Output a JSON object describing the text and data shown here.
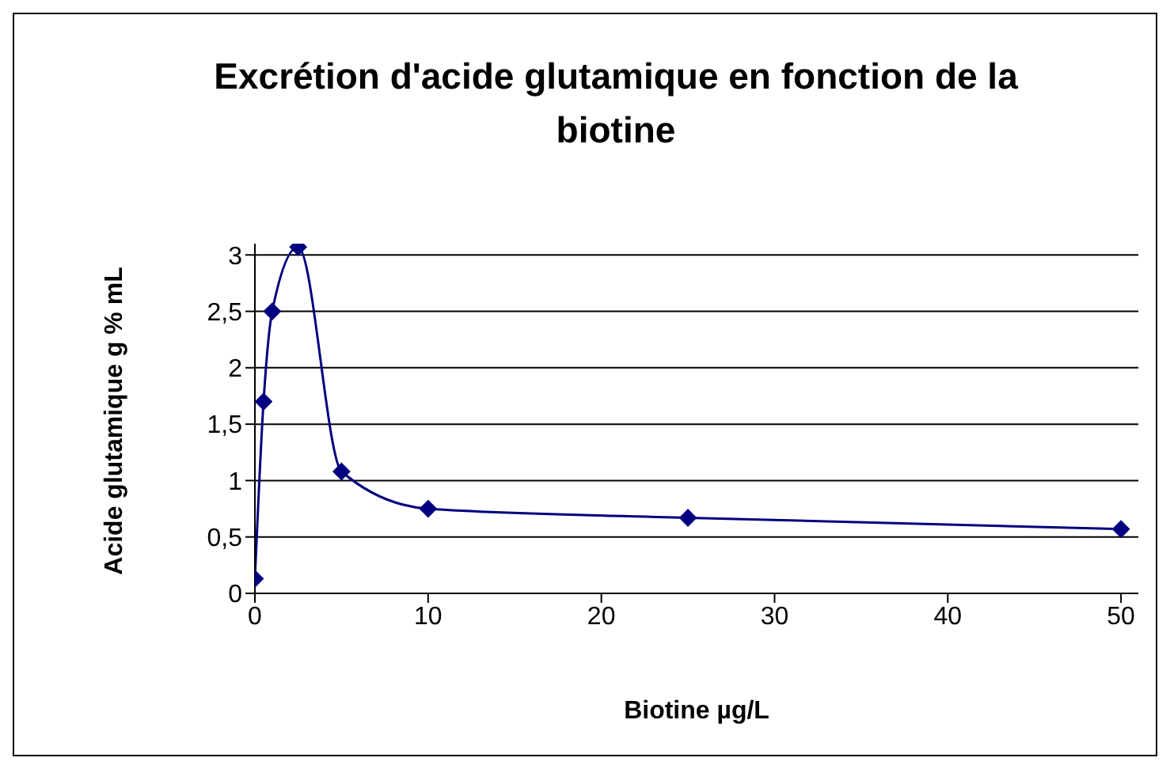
{
  "chart_data": {
    "type": "line",
    "title": "Excrétion d'acide glutamique en fonction de la biotine",
    "xlabel": "Biotine µg/L",
    "ylabel": "Acide glutamique g % mL",
    "x": [
      0,
      0.5,
      1,
      2.5,
      5,
      10,
      25,
      50
    ],
    "series": [
      {
        "color": "#000080",
        "values": [
          0.13,
          1.7,
          2.5,
          3.07,
          1.08,
          0.75,
          0.67,
          0.57
        ]
      }
    ],
    "xlim": [
      0,
      51
    ],
    "xticks": [
      0,
      10,
      20,
      30,
      40,
      50
    ],
    "ylim": [
      0,
      3.1
    ],
    "yticks": [
      0,
      {
        "value": 0.5,
        "label": "0,5"
      },
      1,
      {
        "value": 1.5,
        "label": "1,5"
      },
      2,
      {
        "value": 2.5,
        "label": "2,5"
      },
      3
    ],
    "grid": "y",
    "marker": "diamond",
    "legend": false
  }
}
